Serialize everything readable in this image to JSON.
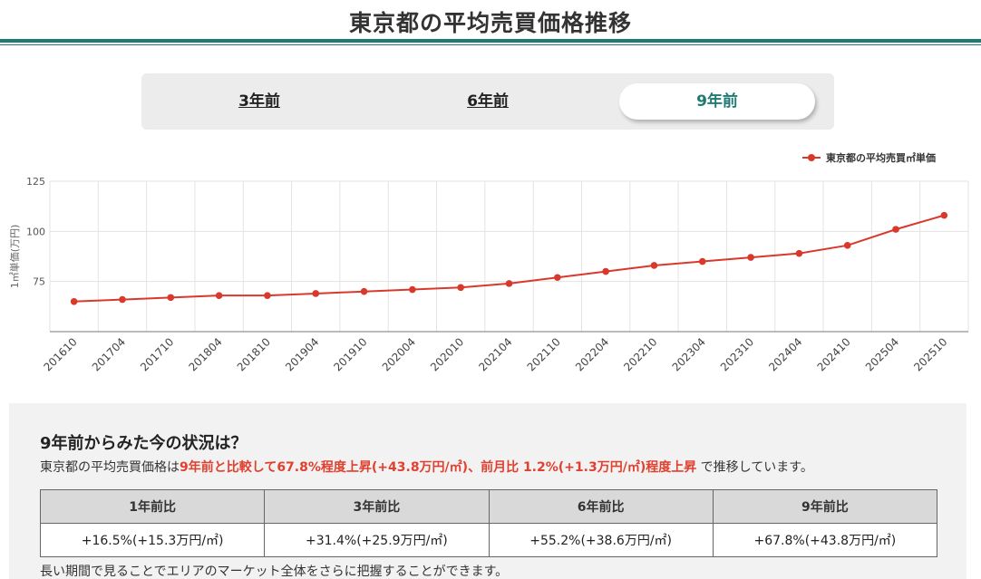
{
  "header": {
    "title": "東京都の平均売買価格推移"
  },
  "tabs": [
    {
      "label": "3年前",
      "active": false
    },
    {
      "label": "6年前",
      "active": false
    },
    {
      "label": "9年前",
      "active": true
    }
  ],
  "colors": {
    "accent": "#1f7a73",
    "series": "#d9392b",
    "highlight": "#e0402f"
  },
  "chart_data": {
    "type": "line",
    "ylabel": "1㎡単価(万円)",
    "xlabel": "",
    "ylim": [
      50,
      125
    ],
    "yticks": [
      75,
      100,
      125
    ],
    "grid": true,
    "legend_position": "top-right",
    "categories": [
      "201610",
      "201704",
      "201710",
      "201804",
      "201810",
      "201904",
      "201910",
      "202004",
      "202010",
      "202104",
      "202110",
      "202204",
      "202210",
      "202304",
      "202310",
      "202404",
      "202410",
      "202504",
      "202510"
    ],
    "series": [
      {
        "name": "東京都の平均売買㎡単価",
        "values": [
          65,
          66,
          67,
          68,
          68,
          69,
          70,
          71,
          72,
          74,
          77,
          80,
          83,
          85,
          87,
          89,
          93,
          101,
          108
        ]
      }
    ]
  },
  "summary": {
    "heading": "9年前からみた今の状況は？",
    "text_prefix": "東京都の平均売買価格は",
    "text_highlight": "9年前と比較して67.8%程度上昇(+43.8万円/㎡)、前月比 1.2%(+1.3万円/㎡)程度上昇",
    "text_suffix": " で推移しています。",
    "table": {
      "headers": [
        "1年前比",
        "3年前比",
        "6年前比",
        "9年前比"
      ],
      "values": [
        "+16.5%(+15.3万円/㎡)",
        "+31.4%(+25.9万円/㎡)",
        "+55.2%(+38.6万円/㎡)",
        "+67.8%(+43.8万円/㎡)"
      ]
    },
    "note": "長い期間で見ることでエリアのマーケット全体をさらに把握することができます。"
  }
}
